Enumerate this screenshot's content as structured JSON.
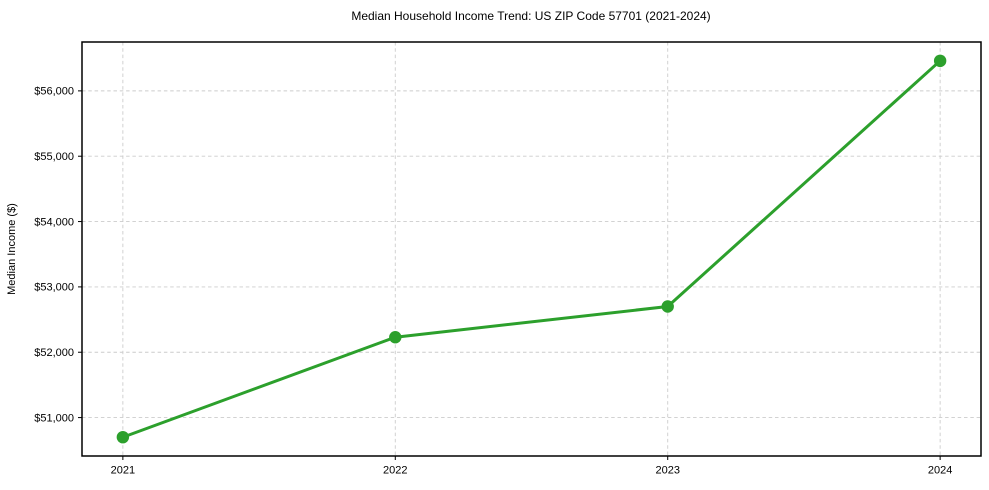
{
  "chart_data": {
    "type": "line",
    "title": "Median Household Income Trend: US ZIP Code 57701 (2021-2024)",
    "xlabel": "",
    "ylabel": "Median Income ($)",
    "x": [
      2021,
      2022,
      2023,
      2024
    ],
    "series": [
      {
        "name": "Median Household Income",
        "values": [
          50700,
          52230,
          52700,
          56460
        ]
      }
    ],
    "x_tick_labels": [
      "2021",
      "2022",
      "2023",
      "2024"
    ],
    "y_ticks": [
      {
        "value": 51000,
        "label": "$51,000"
      },
      {
        "value": 52000,
        "label": "$52,000"
      },
      {
        "value": 53000,
        "label": "$53,000"
      },
      {
        "value": 54000,
        "label": "$54,000"
      },
      {
        "value": 55000,
        "label": "$55,000"
      },
      {
        "value": 56000,
        "label": "$56,000"
      }
    ],
    "xlim": [
      2020.85,
      2024.15
    ],
    "ylim": [
      50412,
      56748
    ],
    "grid": true,
    "grid_style": "dashed",
    "legend": null,
    "colors": {
      "line": "#2ca02c",
      "marker": "#2ca02c",
      "grid": "#cccccc",
      "spine": "#000000",
      "text": "#000000",
      "background": "#ffffff"
    }
  }
}
